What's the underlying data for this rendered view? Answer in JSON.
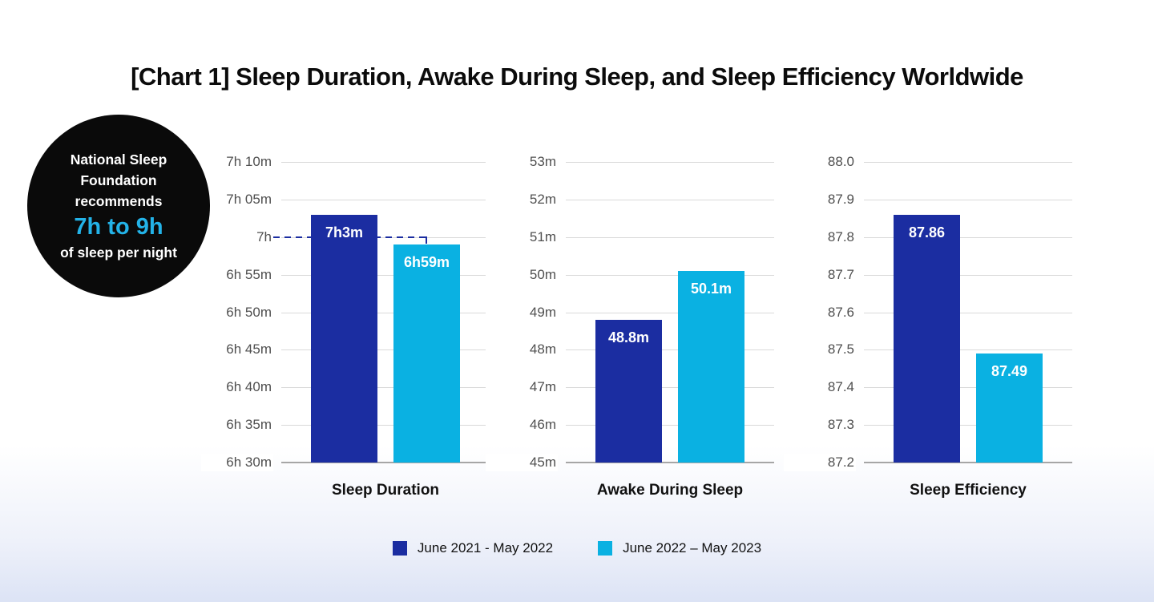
{
  "title": "[Chart 1] Sleep Duration, Awake During Sleep, and Sleep Efficiency Worldwide",
  "badge": {
    "line1": "National Sleep Foundation recommends",
    "highlight": "7h to 9h",
    "line2": "of sleep per night",
    "bg_color": "#0a0a0a",
    "highlight_color": "#23b3e8"
  },
  "annotation": {
    "label": "7h",
    "description": "dashed line from badge to the 7h gridline ending at top of 6h59m bar",
    "color": "#1b2da1"
  },
  "colors": {
    "series1": "#1b2da1",
    "series2": "#0ab1e2",
    "gridline": "#d9d9d9",
    "baseline": "#a6a6a6",
    "tick_text": "#4f4f4f",
    "background_bottom": "#dce3f5"
  },
  "legend": [
    {
      "label": "June 2021 - May 2022",
      "color": "#1b2da1"
    },
    {
      "label": "June 2022 – May 2023",
      "color": "#0ab1e2"
    }
  ],
  "chart_data": [
    {
      "type": "bar",
      "title": "Sleep Duration",
      "unit": "minutes of sleep",
      "ylim": [
        390,
        430
      ],
      "grid": true,
      "yticks_top_to_bottom": [
        "7h 10m",
        "7h 05m",
        "7h",
        "6h 55m",
        "6h 50m",
        "6h 45m",
        "6h 40m",
        "6h 35m",
        "6h 30m"
      ],
      "bars": [
        {
          "series": "June 2021 - May 2022",
          "value": 423,
          "label": "7h3m"
        },
        {
          "series": "June 2022 – May 2023",
          "value": 419,
          "label": "6h59m"
        }
      ]
    },
    {
      "type": "bar",
      "title": "Awake During Sleep",
      "unit": "minutes awake",
      "ylim": [
        45,
        53
      ],
      "grid": true,
      "yticks_top_to_bottom": [
        "53m",
        "52m",
        "51m",
        "50m",
        "49m",
        "48m",
        "47m",
        "46m",
        "45m"
      ],
      "bars": [
        {
          "series": "June 2021 - May 2022",
          "value": 48.8,
          "label": "48.8m"
        },
        {
          "series": "June 2022 – May 2023",
          "value": 50.1,
          "label": "50.1m"
        }
      ]
    },
    {
      "type": "bar",
      "title": "Sleep Efficiency",
      "unit": "percent",
      "ylim": [
        87.2,
        88.0
      ],
      "grid": true,
      "yticks_top_to_bottom": [
        "88.0",
        "87.9",
        "87.8",
        "87.7",
        "87.6",
        "87.5",
        "87.4",
        "87.3",
        "87.2"
      ],
      "bars": [
        {
          "series": "June 2021 - May 2022",
          "value": 87.86,
          "label": "87.86"
        },
        {
          "series": "June 2022 – May 2023",
          "value": 87.49,
          "label": "87.49"
        }
      ]
    }
  ]
}
